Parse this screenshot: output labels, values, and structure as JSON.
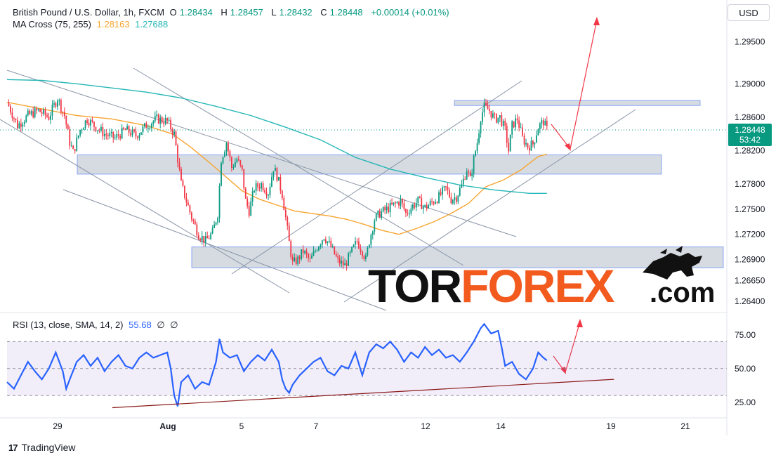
{
  "header": {
    "symbol": "British Pound / U.S. Dollar, 1h, FXCM",
    "o_label": "O",
    "o_value": "1.28434",
    "h_label": "H",
    "h_value": "1.28457",
    "l_label": "L",
    "l_value": "1.28432",
    "c_label": "C",
    "c_value": "1.28448",
    "change": "+0.00014 (+0.01%)",
    "ma_label": "MA Cross (75, 255)",
    "ma_fast": "1.28163",
    "ma_slow": "1.27688",
    "currency_button": "USD"
  },
  "rsi_legend": {
    "label": "RSI (13, close, SMA, 14, 2)",
    "value": "55.68",
    "extra1": "∅",
    "extra2": "∅"
  },
  "price_tag": {
    "price": "1.28448",
    "countdown": "53:42"
  },
  "watermark": {
    "part1": "TOR",
    "part2": "FOREX",
    "part3": ".com"
  },
  "footer": {
    "brand": "TradingView",
    "logo": "17"
  },
  "colors": {
    "up": "#089981",
    "down": "#f23645",
    "ma_fast": "#f7a531",
    "ma_slow": "#26b6b6",
    "rsi": "#2962ff",
    "zone_fill": "#b2bec8",
    "arrow": "#f23645"
  },
  "chart_data": [
    {
      "type": "candlestick",
      "title": "British Pound / U.S. Dollar, 1h, FXCM",
      "x_ticks": [
        "29",
        "Aug",
        "5",
        "7",
        "12",
        "14",
        "19",
        "21"
      ],
      "y_ticks": [
        "1.29500",
        "1.29000",
        "1.28600",
        "1.28200",
        "1.27800",
        "1.27500",
        "1.27200",
        "1.26900",
        "1.26650",
        "1.26400"
      ],
      "ylim": [
        1.2635,
        1.2985
      ],
      "last_price": 1.28448,
      "close_path": [
        [
          0,
          1.2878
        ],
        [
          6,
          1.285
        ],
        [
          12,
          1.2862
        ],
        [
          18,
          1.2868
        ],
        [
          24,
          1.286
        ],
        [
          29,
          1.2883
        ],
        [
          33,
          1.2862
        ],
        [
          36,
          1.283
        ],
        [
          38,
          1.2818
        ],
        [
          42,
          1.2845
        ],
        [
          46,
          1.2858
        ],
        [
          50,
          1.285
        ],
        [
          56,
          1.284
        ],
        [
          62,
          1.2835
        ],
        [
          68,
          1.2845
        ],
        [
          74,
          1.2838
        ],
        [
          80,
          1.285
        ],
        [
          86,
          1.2858
        ],
        [
          92,
          1.2855
        ],
        [
          96,
          1.284
        ],
        [
          98,
          1.281
        ],
        [
          100,
          1.278
        ],
        [
          103,
          1.276
        ],
        [
          106,
          1.274
        ],
        [
          110,
          1.272
        ],
        [
          114,
          1.2712
        ],
        [
          118,
          1.2722
        ],
        [
          121,
          1.2745
        ],
        [
          123,
          1.281
        ],
        [
          126,
          1.283
        ],
        [
          129,
          1.28
        ],
        [
          132,
          1.281
        ],
        [
          135,
          1.2795
        ],
        [
          137,
          1.276
        ],
        [
          139,
          1.2748
        ],
        [
          142,
          1.2775
        ],
        [
          146,
          1.278
        ],
        [
          150,
          1.277
        ],
        [
          153,
          1.28
        ],
        [
          155,
          1.279
        ],
        [
          158,
          1.2768
        ],
        [
          160,
          1.274
        ],
        [
          162,
          1.271
        ],
        [
          164,
          1.2685
        ],
        [
          167,
          1.269
        ],
        [
          170,
          1.27
        ],
        [
          174,
          1.2688
        ],
        [
          178,
          1.2705
        ],
        [
          182,
          1.2718
        ],
        [
          186,
          1.2705
        ],
        [
          190,
          1.2688
        ],
        [
          194,
          1.2683
        ],
        [
          198,
          1.27
        ],
        [
          201,
          1.2712
        ],
        [
          204,
          1.27
        ],
        [
          206,
          1.269
        ],
        [
          208,
          1.2712
        ],
        [
          211,
          1.2738
        ],
        [
          214,
          1.2745
        ],
        [
          218,
          1.275
        ],
        [
          222,
          1.2755
        ],
        [
          226,
          1.276
        ],
        [
          229,
          1.2745
        ],
        [
          232,
          1.2752
        ],
        [
          236,
          1.276
        ],
        [
          240,
          1.2752
        ],
        [
          244,
          1.2758
        ],
        [
          248,
          1.2765
        ],
        [
          252,
          1.2775
        ],
        [
          255,
          1.2762
        ],
        [
          258,
          1.2765
        ],
        [
          261,
          1.2778
        ],
        [
          264,
          1.2798
        ],
        [
          266,
          1.2785
        ],
        [
          268,
          1.281
        ],
        [
          270,
          1.283
        ],
        [
          272,
          1.286
        ],
        [
          274,
          1.2872
        ],
        [
          277,
          1.2868
        ],
        [
          280,
          1.2858
        ],
        [
          283,
          1.286
        ],
        [
          286,
          1.2845
        ],
        [
          288,
          1.282
        ],
        [
          290,
          1.285
        ],
        [
          293,
          1.2858
        ],
        [
          296,
          1.2835
        ],
        [
          299,
          1.2825
        ],
        [
          302,
          1.2828
        ],
        [
          305,
          1.2848
        ],
        [
          308,
          1.2855
        ],
        [
          310,
          1.2845
        ]
      ],
      "series": [
        {
          "name": "MA 75",
          "values": [
            [
              0,
              1.2878
            ],
            [
              20,
              1.287
            ],
            [
              40,
              1.2862
            ],
            [
              60,
              1.2858
            ],
            [
              80,
              1.285
            ],
            [
              95,
              1.284
            ],
            [
              105,
              1.2825
            ],
            [
              115,
              1.2808
            ],
            [
              125,
              1.279
            ],
            [
              135,
              1.2772
            ],
            [
              145,
              1.2762
            ],
            [
              155,
              1.2755
            ],
            [
              165,
              1.2748
            ],
            [
              175,
              1.2745
            ],
            [
              185,
              1.2742
            ],
            [
              195,
              1.2738
            ],
            [
              205,
              1.2732
            ],
            [
              215,
              1.2725
            ],
            [
              225,
              1.272
            ],
            [
              235,
              1.2727
            ],
            [
              245,
              1.2735
            ],
            [
              255,
              1.2745
            ],
            [
              265,
              1.2757
            ],
            [
              275,
              1.2777
            ],
            [
              285,
              1.2785
            ],
            [
              295,
              1.2797
            ],
            [
              305,
              1.2813
            ],
            [
              310,
              1.2816
            ]
          ]
        },
        {
          "name": "MA 255",
          "values": [
            [
              0,
              1.2905
            ],
            [
              20,
              1.2904
            ],
            [
              40,
              1.29
            ],
            [
              60,
              1.2895
            ],
            [
              80,
              1.289
            ],
            [
              100,
              1.2883
            ],
            [
              120,
              1.2873
            ],
            [
              140,
              1.2862
            ],
            [
              160,
              1.2848
            ],
            [
              180,
              1.2833
            ],
            [
              200,
              1.2812
            ],
            [
              220,
              1.2798
            ],
            [
              240,
              1.2788
            ],
            [
              260,
              1.2779
            ],
            [
              280,
              1.2773
            ],
            [
              300,
              1.2769
            ],
            [
              310,
              1.2769
            ]
          ]
        }
      ],
      "zones": [
        [
          1.288,
          1.2874
        ],
        [
          1.2815,
          1.2792
        ],
        [
          1.2705,
          1.268
        ]
      ]
    },
    {
      "type": "line",
      "title": "RSI (13, close, SMA, 14, 2)",
      "y_ticks": [
        "75.00",
        "50.00",
        "25.00"
      ],
      "ylim": [
        15,
        90
      ],
      "band": [
        30,
        70
      ],
      "midline": 50,
      "last_value": 55.68,
      "series": [
        {
          "name": "RSI",
          "values": [
            [
              0,
              40
            ],
            [
              4,
              35
            ],
            [
              8,
              45
            ],
            [
              12,
              55
            ],
            [
              16,
              48
            ],
            [
              20,
              42
            ],
            [
              24,
              50
            ],
            [
              28,
              62
            ],
            [
              32,
              48
            ],
            [
              34,
              35
            ],
            [
              36,
              42
            ],
            [
              40,
              55
            ],
            [
              44,
              60
            ],
            [
              48,
              52
            ],
            [
              52,
              58
            ],
            [
              56,
              48
            ],
            [
              60,
              55
            ],
            [
              64,
              60
            ],
            [
              68,
              52
            ],
            [
              72,
              50
            ],
            [
              76,
              58
            ],
            [
              80,
              62
            ],
            [
              84,
              58
            ],
            [
              88,
              60
            ],
            [
              92,
              62
            ],
            [
              94,
              50
            ],
            [
              96,
              30
            ],
            [
              98,
              22
            ],
            [
              100,
              40
            ],
            [
              104,
              45
            ],
            [
              108,
              35
            ],
            [
              112,
              40
            ],
            [
              116,
              38
            ],
            [
              120,
              55
            ],
            [
              122,
              72
            ],
            [
              124,
              62
            ],
            [
              128,
              58
            ],
            [
              132,
              60
            ],
            [
              136,
              48
            ],
            [
              140,
              55
            ],
            [
              144,
              60
            ],
            [
              148,
              56
            ],
            [
              152,
              64
            ],
            [
              156,
              55
            ],
            [
              158,
              42
            ],
            [
              160,
              35
            ],
            [
              162,
              32
            ],
            [
              164,
              38
            ],
            [
              168,
              45
            ],
            [
              172,
              50
            ],
            [
              176,
              55
            ],
            [
              180,
              58
            ],
            [
              184,
              48
            ],
            [
              188,
              45
            ],
            [
              192,
              52
            ],
            [
              196,
              50
            ],
            [
              200,
              62
            ],
            [
              204,
              45
            ],
            [
              208,
              62
            ],
            [
              212,
              68
            ],
            [
              216,
              65
            ],
            [
              220,
              70
            ],
            [
              224,
              64
            ],
            [
              228,
              55
            ],
            [
              232,
              62
            ],
            [
              236,
              58
            ],
            [
              240,
              66
            ],
            [
              244,
              60
            ],
            [
              248,
              64
            ],
            [
              252,
              58
            ],
            [
              256,
              60
            ],
            [
              260,
              55
            ],
            [
              264,
              62
            ],
            [
              268,
              70
            ],
            [
              272,
              80
            ],
            [
              274,
              83
            ],
            [
              278,
              76
            ],
            [
              282,
              78
            ],
            [
              284,
              66
            ],
            [
              286,
              52
            ],
            [
              290,
              55
            ],
            [
              294,
              46
            ],
            [
              298,
              42
            ],
            [
              302,
              50
            ],
            [
              305,
              62
            ],
            [
              308,
              58
            ],
            [
              310,
              56
            ]
          ]
        }
      ],
      "trendline": [
        [
          25,
          21
        ],
        [
          255,
          42
        ]
      ]
    }
  ]
}
